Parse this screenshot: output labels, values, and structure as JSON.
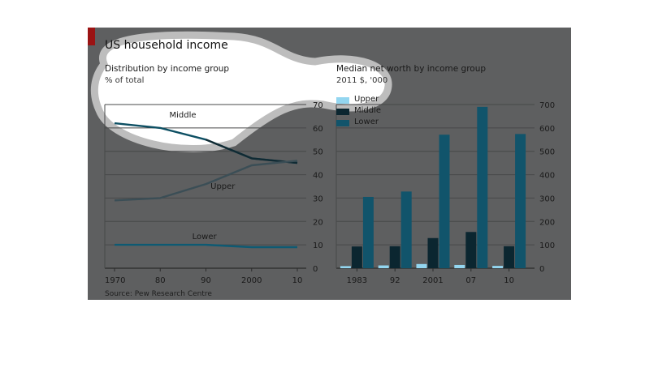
{
  "figure": {
    "title": "US household income",
    "source": "Source: Pew Research Centre",
    "colors": {
      "background": "#5e5f60",
      "upper": "#93d6f0",
      "middle": "#0b2630",
      "lower": "#11546b",
      "line_middle": "#0d4f63",
      "line_upper": "#3b4e56",
      "line_lower": "#0e5a73",
      "accent": "#9b1313"
    }
  },
  "chart_data": [
    {
      "type": "line",
      "title": "Distribution by income group",
      "subtitle": "% of total",
      "x": [
        1970,
        1980,
        1990,
        2000,
        2010
      ],
      "x_tick_labels": [
        "1970",
        "80",
        "90",
        "2000",
        "10"
      ],
      "ylim": [
        0,
        70
      ],
      "y_ticks": [
        0,
        10,
        20,
        30,
        40,
        50,
        60,
        70
      ],
      "y_axis_side": "right",
      "grid": true,
      "series": [
        {
          "name": "Middle",
          "values": [
            62,
            60,
            55,
            47,
            45
          ]
        },
        {
          "name": "Upper",
          "values": [
            29,
            30,
            36,
            44,
            46
          ]
        },
        {
          "name": "Lower",
          "values": [
            10,
            10,
            10,
            9,
            9
          ]
        }
      ]
    },
    {
      "type": "bar",
      "title": "Median net worth by income group",
      "subtitle": "2011 $, '000",
      "categories": [
        "1983",
        "92",
        "2001",
        "07",
        "10"
      ],
      "ylim": [
        0,
        700
      ],
      "y_ticks": [
        0,
        100,
        200,
        300,
        400,
        500,
        600,
        700
      ],
      "y_axis_side": "right",
      "grid": true,
      "legend_position": "top-left",
      "series": [
        {
          "name": "Upper",
          "values": [
            9,
            12,
            18,
            14,
            10
          ]
        },
        {
          "name": "Middle",
          "values": [
            93,
            94,
            129,
            155,
            94
          ]
        },
        {
          "name": "Lower",
          "values": [
            305,
            328,
            571,
            690,
            574
          ]
        }
      ]
    }
  ]
}
